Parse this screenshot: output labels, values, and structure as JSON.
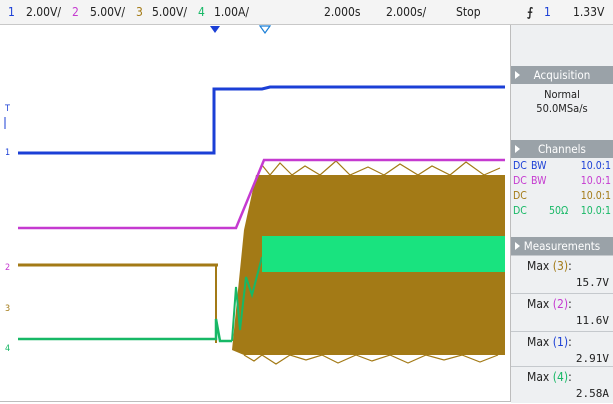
{
  "header": {
    "ch1_num": "1",
    "ch1_scale": "2.00V/",
    "ch2_num": "2",
    "ch2_scale": "5.00V/",
    "ch3_num": "3",
    "ch3_scale": "5.00V/",
    "ch4_num": "4",
    "ch4_scale": "1.00A/",
    "time_pos": "2.000s",
    "time_scale": "2.000s/",
    "run_state": "Stop",
    "trigger_symbol": "⨍",
    "trigger_channel": "1",
    "trigger_level": "1.33V"
  },
  "colors": {
    "ch1": "#1b3fd6",
    "ch2": "#c53ad0",
    "ch3": "#a37a16",
    "ch4": "#17b866"
  },
  "screen": {
    "ground_markers": {
      "ch1": "1",
      "ch2": "2",
      "ch3": "3",
      "ch4": "4",
      "trigger": "T"
    }
  },
  "panel": {
    "acquisition": {
      "title": "Acquisition",
      "mode": "Normal",
      "rate": "50.0MSa/s"
    },
    "channels": {
      "title": "Channels",
      "rows": [
        {
          "coupling": "DC",
          "extra": "BW",
          "probe": "10.0:1"
        },
        {
          "coupling": "DC",
          "extra": "BW",
          "probe": "10.0:1"
        },
        {
          "coupling": "DC",
          "extra": "",
          "probe": "10.0:1"
        },
        {
          "coupling": "DC",
          "extra": "50Ω",
          "probe": "10.0:1"
        }
      ]
    },
    "measurements": {
      "title": "Measurements",
      "items": [
        {
          "label": "Max",
          "source": "(3)",
          "value": "15.7V"
        },
        {
          "label": "Max",
          "source": "(2)",
          "value": "11.6V"
        },
        {
          "label": "Max",
          "source": "(1)",
          "value": "2.91V"
        },
        {
          "label": "Max",
          "source": "(4)",
          "value": "2.58A"
        }
      ]
    }
  }
}
